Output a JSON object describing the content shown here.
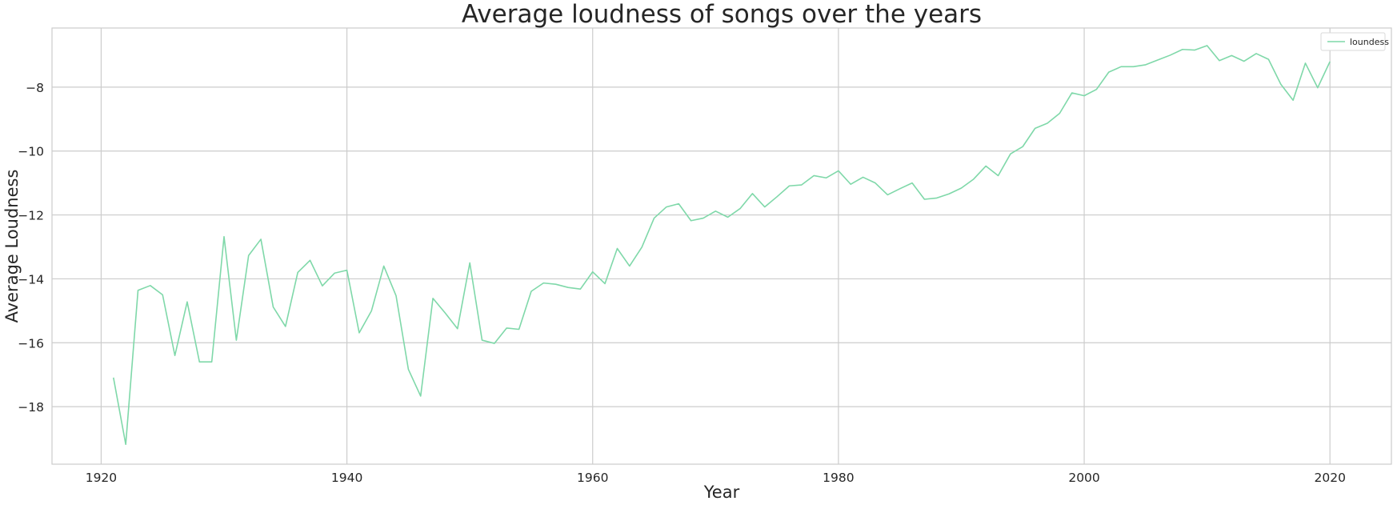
{
  "chart_data": {
    "type": "line",
    "title": "Average loudness of songs over the years",
    "xlabel": "Year",
    "ylabel": "Average Loudness",
    "xlim": [
      1916,
      2025
    ],
    "ylim": [
      -19.8,
      -6.15
    ],
    "x_ticks": [
      1920,
      1940,
      1960,
      1980,
      2000,
      2020
    ],
    "y_ticks": [
      -18,
      -16,
      -14,
      -12,
      -10,
      -8
    ],
    "x_tick_labels": [
      "1920",
      "1940",
      "1960",
      "1980",
      "2000",
      "2020"
    ],
    "y_tick_labels": [
      "−18",
      "−16",
      "−14",
      "−12",
      "−10",
      "−8"
    ],
    "grid": true,
    "legend_position": "top-right",
    "series": [
      {
        "name": "loundess",
        "color": "#7fd8a9",
        "x": [
          1921,
          1922,
          1923,
          1924,
          1925,
          1926,
          1927,
          1928,
          1929,
          1930,
          1931,
          1932,
          1933,
          1934,
          1935,
          1936,
          1937,
          1938,
          1939,
          1940,
          1941,
          1942,
          1943,
          1944,
          1945,
          1946,
          1947,
          1948,
          1949,
          1950,
          1951,
          1952,
          1953,
          1954,
          1955,
          1956,
          1957,
          1958,
          1959,
          1960,
          1961,
          1962,
          1963,
          1964,
          1965,
          1966,
          1967,
          1968,
          1969,
          1970,
          1971,
          1972,
          1973,
          1974,
          1975,
          1976,
          1977,
          1978,
          1979,
          1980,
          1981,
          1982,
          1983,
          1984,
          1985,
          1986,
          1987,
          1988,
          1989,
          1990,
          1991,
          1992,
          1993,
          1994,
          1995,
          1996,
          1997,
          1998,
          1999,
          2000,
          2001,
          2002,
          2003,
          2004,
          2005,
          2006,
          2007,
          2008,
          2009,
          2010,
          2011,
          2012,
          2013,
          2014,
          2015,
          2016,
          2017,
          2018,
          2019,
          2020
        ],
        "values": [
          -17.09,
          -19.18,
          -14.36,
          -14.21,
          -14.5,
          -16.4,
          -14.72,
          -16.6,
          -16.6,
          -12.68,
          -15.92,
          -13.27,
          -12.76,
          -14.88,
          -15.49,
          -13.8,
          -13.42,
          -14.22,
          -13.82,
          -13.73,
          -15.69,
          -15.0,
          -13.6,
          -14.53,
          -16.83,
          -17.67,
          -14.61,
          -15.07,
          -15.56,
          -13.5,
          -15.92,
          -16.02,
          -15.54,
          -15.58,
          -14.39,
          -14.13,
          -14.17,
          -14.27,
          -14.32,
          -13.78,
          -14.15,
          -13.05,
          -13.6,
          -13.01,
          -12.1,
          -11.75,
          -11.65,
          -12.18,
          -12.1,
          -11.88,
          -12.07,
          -11.8,
          -11.33,
          -11.75,
          -11.43,
          -11.09,
          -11.06,
          -10.77,
          -10.84,
          -10.62,
          -11.04,
          -10.82,
          -11.0,
          -11.37,
          -11.18,
          -11.0,
          -11.51,
          -11.47,
          -11.34,
          -11.16,
          -10.88,
          -10.47,
          -10.77,
          -10.09,
          -9.86,
          -9.29,
          -9.13,
          -8.82,
          -8.18,
          -8.27,
          -8.07,
          -7.53,
          -7.36,
          -7.36,
          -7.3,
          -7.15,
          -7.0,
          -6.82,
          -6.84,
          -6.7,
          -7.17,
          -7.01,
          -7.19,
          -6.95,
          -7.13,
          -7.91,
          -8.41,
          -7.25,
          -8.02,
          -7.2
        ]
      }
    ]
  }
}
